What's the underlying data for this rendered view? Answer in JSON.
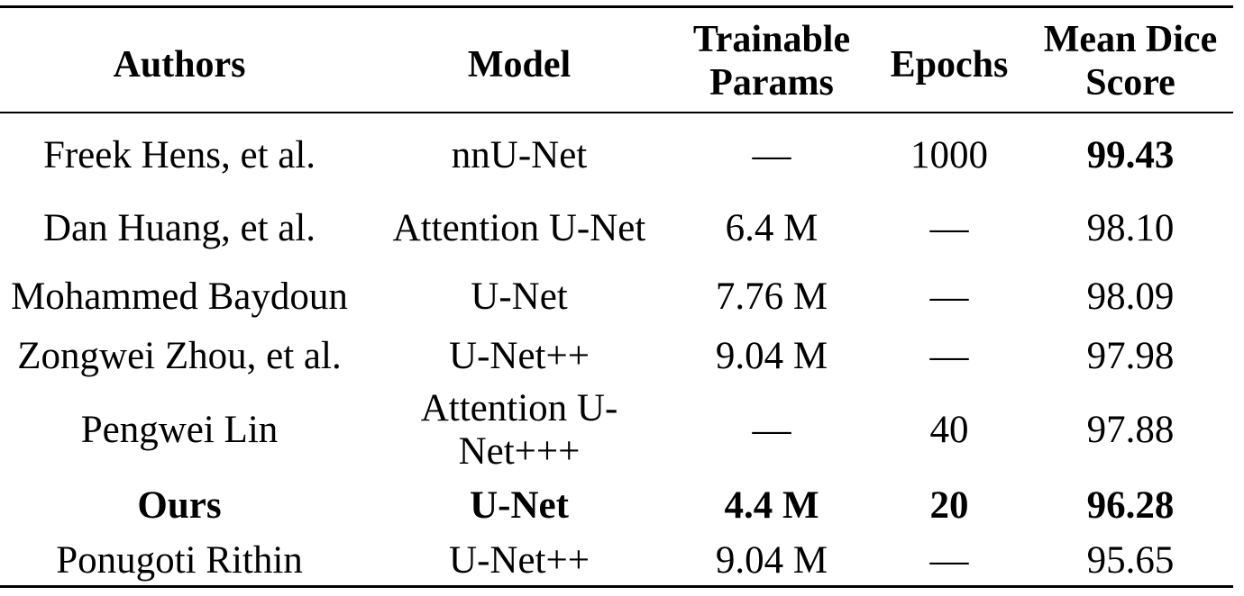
{
  "table": {
    "headers": {
      "authors": "Authors",
      "model": "Model",
      "params_line1": "Trainable",
      "params_line2": "Params",
      "epochs": "Epochs",
      "score_line1": "Mean Dice",
      "score_line2": "Score"
    },
    "rows": [
      {
        "authors": "Freek Hens, et al.",
        "model": "nnU-Net",
        "params": "—",
        "epochs": "1000",
        "score": "99.43"
      },
      {
        "authors": "Dan Huang, et al.",
        "model": "Attention U-Net",
        "params": "6.4 M",
        "epochs": "—",
        "score": "98.10"
      },
      {
        "authors": "Mohammed Baydoun",
        "model": "U-Net",
        "params": "7.76 M",
        "epochs": "—",
        "score": "98.09"
      },
      {
        "authors": "Zongwei Zhou, et al.",
        "model": "U-Net++",
        "params": "9.04 M",
        "epochs": "—",
        "score": "97.98"
      },
      {
        "authors": "Pengwei Lin",
        "model_line1": "Attention U-",
        "model_line2": "Net+++",
        "params": "—",
        "epochs": "40",
        "score": "97.88"
      },
      {
        "authors": "Ours",
        "model": "U-Net",
        "params": "4.4 M",
        "epochs": "20",
        "score": "96.28"
      },
      {
        "authors": "Ponugoti Rithin",
        "model": "U-Net++",
        "params": "9.04 M",
        "epochs": "—",
        "score": "95.65"
      }
    ]
  }
}
